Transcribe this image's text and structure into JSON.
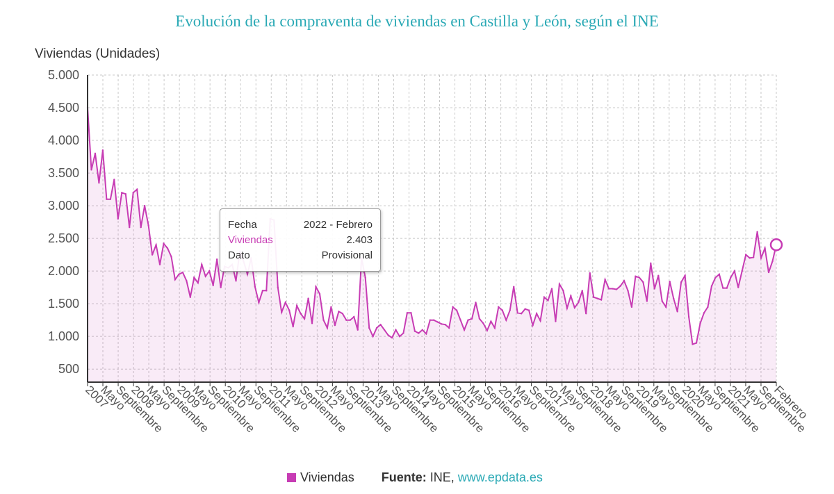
{
  "title": "Evolución de la compraventa de viviendas en Castilla y León, según el INE",
  "tooltip": {
    "fecha_label": "Fecha",
    "fecha_value": "2022 - Febrero",
    "series_label": "Viviendas",
    "series_value": "2.403",
    "dato_label": "Dato",
    "dato_value": "Provisional"
  },
  "legend": {
    "series_name": "Viviendas",
    "source_label": "Fuente:",
    "source_text": "INE,",
    "source_link": "www.epdata.es"
  },
  "colors": {
    "series": "#c73cb4",
    "title": "#2aa9b5",
    "grid": "#c8c8c8"
  },
  "chart_data": {
    "type": "area",
    "title": "Evolución de la compraventa de viviendas en Castilla y León, según el INE",
    "ylabel": "Viviendas (Unidades)",
    "xlabel": "",
    "ylim": [
      300,
      5000
    ],
    "yticks": [
      500,
      1000,
      1500,
      2000,
      2500,
      3000,
      3500,
      4000,
      4500,
      5000
    ],
    "ytick_labels": [
      "500",
      "1.000",
      "1.500",
      "2.000",
      "2.500",
      "3.000",
      "3.500",
      "4.000",
      "4.500",
      "5.000"
    ],
    "x_start": "2007 - Enero",
    "x_end": "2022 - Febrero",
    "x_tick_labels": [
      "2007",
      "Mayo",
      "Septiembre",
      "2008",
      "Mayo",
      "Septiembre",
      "2009",
      "Mayo",
      "Septiembre",
      "2010",
      "Mayo",
      "Septiembre",
      "2011",
      "Mayo",
      "Septiembre",
      "2012",
      "Mayo",
      "Septiembre",
      "2013",
      "Mayo",
      "Septiembre",
      "2014",
      "Mayo",
      "Septiembre",
      "2015",
      "Mayo",
      "Septiembre",
      "2016",
      "Mayo",
      "Septiembre",
      "2017",
      "Mayo",
      "Septiembre",
      "2018",
      "Mayo",
      "Septiembre",
      "2019",
      "Mayo",
      "Septiembre",
      "2020",
      "Mayo",
      "Septiembre",
      "2021",
      "Mayo",
      "Septiembre",
      "Febrero"
    ],
    "grid": true,
    "legend_position": "bottom",
    "highlight_index": 181,
    "series": [
      {
        "name": "Viviendas",
        "values": [
          4500,
          3550,
          3800,
          3350,
          3850,
          3100,
          3100,
          3400,
          2800,
          3200,
          3180,
          2670,
          3200,
          3250,
          2670,
          3000,
          2700,
          2250,
          2400,
          2100,
          2420,
          2350,
          2220,
          1870,
          1950,
          1980,
          1850,
          1600,
          1900,
          1820,
          2100,
          1920,
          2000,
          1780,
          2180,
          1750,
          2070,
          2050,
          2100,
          1850,
          2300,
          2150,
          1950,
          2200,
          1760,
          1520,
          1700,
          1700,
          2800,
          2780,
          1750,
          1370,
          1520,
          1400,
          1150,
          1470,
          1350,
          1270,
          1580,
          1200,
          1760,
          1650,
          1250,
          1130,
          1450,
          1170,
          1380,
          1350,
          1250,
          1250,
          1300,
          1100,
          2200,
          1900,
          1130,
          1000,
          1130,
          1180,
          1100,
          1020,
          980,
          1100,
          1000,
          1050,
          1360,
          1360,
          1080,
          1050,
          1100,
          1040,
          1250,
          1250,
          1220,
          1190,
          1180,
          1130,
          1450,
          1400,
          1250,
          1100,
          1250,
          1270,
          1520,
          1270,
          1200,
          1090,
          1230,
          1130,
          1450,
          1400,
          1250,
          1400,
          1760,
          1360,
          1350,
          1420,
          1400,
          1170,
          1350,
          1240,
          1600,
          1550,
          1730,
          1230,
          1800,
          1700,
          1430,
          1620,
          1440,
          1520,
          1700,
          1350,
          1970,
          1600,
          1580,
          1560,
          1870,
          1730,
          1730,
          1720,
          1770,
          1850,
          1700,
          1450,
          1920,
          1900,
          1830,
          1540,
          2120,
          1730,
          1930,
          1540,
          1450,
          1840,
          1580,
          1380,
          1830,
          1930,
          1300,
          880,
          900,
          1200,
          1360,
          1450,
          1770,
          1900,
          1950,
          1740,
          1740,
          1900,
          2000,
          1750,
          2000,
          2250,
          2200,
          2210,
          2600,
          2200,
          2350,
          1980,
          2150,
          2403
        ]
      }
    ]
  }
}
